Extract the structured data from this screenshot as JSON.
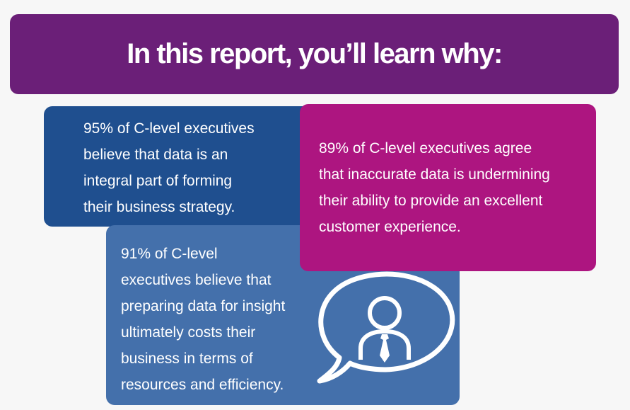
{
  "header": {
    "title": "In this report, you’ll learn why:"
  },
  "cards": [
    {
      "lines": [
        "95% of C-level executives",
        "believe that data is an",
        "integral part of forming",
        "their business strategy."
      ]
    },
    {
      "lines": [
        "89% of C-level executives agree",
        "that inaccurate data is undermining",
        "their ability to provide an excellent",
        "customer experience."
      ]
    },
    {
      "lines": [
        "91% of C-level",
        "executives believe that",
        "preparing data for insight",
        "ultimately costs their",
        "business in terms of",
        "resources and efficiency."
      ]
    }
  ]
}
